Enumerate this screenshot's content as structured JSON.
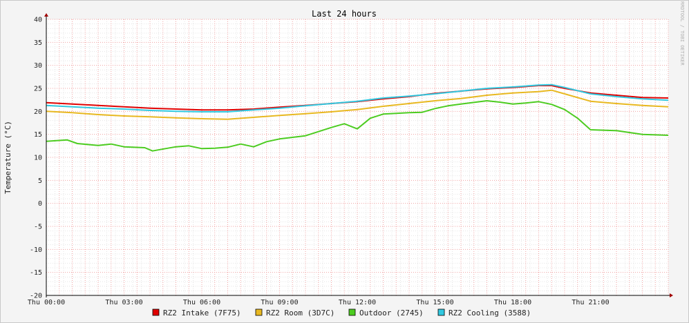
{
  "chart_data": {
    "type": "line",
    "title": "Last 24 hours",
    "ylabel": "Temperature (°C)",
    "watermark": "RRDTOOL / TOBI OETIKER",
    "ylim": [
      -20,
      40
    ],
    "y_ticks": [
      -20,
      -15,
      -10,
      -5,
      0,
      5,
      10,
      15,
      20,
      25,
      30,
      35,
      40
    ],
    "xlim": [
      0,
      24
    ],
    "x_ticks": [
      {
        "x": 0,
        "label": "Thu 00:00"
      },
      {
        "x": 3,
        "label": "Thu 03:00"
      },
      {
        "x": 6,
        "label": "Thu 06:00"
      },
      {
        "x": 9,
        "label": "Thu 09:00"
      },
      {
        "x": 12,
        "label": "Thu 12:00"
      },
      {
        "x": 15,
        "label": "Thu 15:00"
      },
      {
        "x": 18,
        "label": "Thu 18:00"
      },
      {
        "x": 21,
        "label": "Thu 21:00"
      }
    ],
    "grid": true,
    "legend_position": "bottom",
    "series": [
      {
        "name": "RZ2 Intake (7F75)",
        "color": "#e00000",
        "x": [
          0,
          1,
          2,
          3,
          4,
          5,
          6,
          7,
          8,
          9,
          10,
          11,
          12,
          13,
          14,
          15,
          16,
          17,
          18,
          19,
          19.5,
          20,
          21,
          22,
          23,
          24
        ],
        "y": [
          21.9,
          21.6,
          21.3,
          21.0,
          20.7,
          20.5,
          20.3,
          20.3,
          20.5,
          20.9,
          21.3,
          21.7,
          22.1,
          22.7,
          23.2,
          23.9,
          24.4,
          24.9,
          25.2,
          25.6,
          25.6,
          25.0,
          24.0,
          23.5,
          23.0,
          22.9
        ]
      },
      {
        "name": "RZ2 Room (3D7C)",
        "color": "#e8b820",
        "x": [
          0,
          1,
          2,
          3,
          4,
          5,
          6,
          7,
          8,
          9,
          10,
          11,
          12,
          13,
          14,
          15,
          16,
          17,
          18,
          19,
          19.5,
          20,
          21,
          22,
          23,
          24
        ],
        "y": [
          20.0,
          19.7,
          19.3,
          19.0,
          18.8,
          18.6,
          18.4,
          18.3,
          18.7,
          19.1,
          19.5,
          19.9,
          20.4,
          21.1,
          21.7,
          22.3,
          22.8,
          23.5,
          24.0,
          24.3,
          24.6,
          23.8,
          22.2,
          21.7,
          21.3,
          21.0
        ]
      },
      {
        "name": "Outdoor (2745)",
        "color": "#4ccc20",
        "x": [
          0,
          0.8,
          1.2,
          2,
          2.5,
          3,
          3.8,
          4.1,
          4.6,
          5,
          5.5,
          6,
          6.5,
          7,
          7.5,
          8,
          8.5,
          9,
          10,
          10.5,
          11,
          11.5,
          12,
          12.5,
          13,
          14,
          14.5,
          15,
          15.5,
          16,
          17,
          17.5,
          18,
          18.5,
          19,
          19.5,
          20,
          20.5,
          21,
          22,
          23,
          24
        ],
        "y": [
          13.5,
          13.8,
          13.0,
          12.6,
          12.9,
          12.3,
          12.1,
          11.4,
          11.9,
          12.3,
          12.5,
          11.9,
          12.0,
          12.2,
          12.9,
          12.3,
          13.4,
          14.0,
          14.7,
          15.6,
          16.5,
          17.3,
          16.2,
          18.5,
          19.4,
          19.7,
          19.8,
          20.6,
          21.2,
          21.6,
          22.3,
          22.0,
          21.6,
          21.8,
          22.1,
          21.5,
          20.4,
          18.5,
          16.0,
          15.8,
          15.0,
          14.8
        ]
      },
      {
        "name": "RZ2 Cooling (3588)",
        "color": "#30c8e0",
        "x": [
          0,
          1,
          2,
          3,
          4,
          5,
          6,
          7,
          8,
          9,
          10,
          11,
          12,
          13,
          14,
          15,
          16,
          17,
          18,
          19,
          19.5,
          20,
          21,
          22,
          23,
          24
        ],
        "y": [
          21.3,
          21.0,
          20.7,
          20.5,
          20.2,
          20.0,
          19.9,
          19.9,
          20.3,
          20.7,
          21.2,
          21.7,
          22.2,
          22.9,
          23.3,
          23.8,
          24.4,
          25.0,
          25.3,
          25.7,
          25.8,
          25.2,
          23.8,
          23.2,
          22.7,
          22.4
        ]
      }
    ]
  }
}
